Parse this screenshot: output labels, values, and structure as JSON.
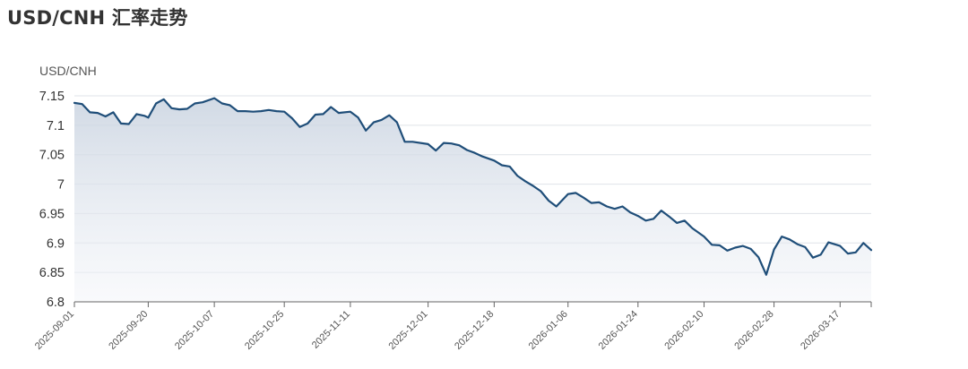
{
  "title": "USD/CNH 汇率走势",
  "chart_data": {
    "type": "area",
    "ylabel": "USD/CNH",
    "xlabel": "",
    "ylim": [
      6.8,
      7.15
    ],
    "yticks": [
      "6.8",
      "6.85",
      "6.9",
      "6.95",
      "7",
      "7.05",
      "7.1",
      "7.15"
    ],
    "xlim": [
      "2025-09-01",
      "2026-03-25"
    ],
    "xticks": [
      "2025-09-01",
      "2025-09-20",
      "2025-10-07",
      "2025-10-25",
      "2025-11-11",
      "2025-12-01",
      "2025-12-18",
      "2026-01-06",
      "2026-01-24",
      "2026-02-10",
      "2026-02-28",
      "2026-03-17"
    ],
    "grid": true,
    "line_color": "#1f4e79",
    "series": [
      {
        "x": [
          "2025-09-01",
          "2025-09-03",
          "2025-09-05",
          "2025-09-07",
          "2025-09-09",
          "2025-09-11",
          "2025-09-13",
          "2025-09-15",
          "2025-09-17",
          "2025-09-19",
          "2025-09-20",
          "2025-09-22",
          "2025-09-24",
          "2025-09-26",
          "2025-09-28",
          "2025-09-30",
          "2025-10-02",
          "2025-10-04",
          "2025-10-07",
          "2025-10-09",
          "2025-10-11",
          "2025-10-13",
          "2025-10-15",
          "2025-10-17",
          "2025-10-19",
          "2025-10-21",
          "2025-10-23",
          "2025-10-25",
          "2025-10-27",
          "2025-10-29",
          "2025-10-31",
          "2025-11-02",
          "2025-11-04",
          "2025-11-06",
          "2025-11-08",
          "2025-11-11",
          "2025-11-13",
          "2025-11-15",
          "2025-11-17",
          "2025-11-19",
          "2025-11-21",
          "2025-11-23",
          "2025-11-25",
          "2025-11-27",
          "2025-12-01",
          "2025-12-03",
          "2025-12-05",
          "2025-12-07",
          "2025-12-09",
          "2025-12-11",
          "2025-12-13",
          "2025-12-15",
          "2025-12-18",
          "2025-12-20",
          "2025-12-22",
          "2025-12-24",
          "2025-12-26",
          "2025-12-28",
          "2025-12-30",
          "2026-01-01",
          "2026-01-03",
          "2026-01-06",
          "2026-01-08",
          "2026-01-10",
          "2026-01-12",
          "2026-01-14",
          "2026-01-16",
          "2026-01-18",
          "2026-01-20",
          "2026-01-22",
          "2026-01-24",
          "2026-01-26",
          "2026-01-28",
          "2026-01-30",
          "2026-02-01",
          "2026-02-03",
          "2026-02-05",
          "2026-02-07",
          "2026-02-10",
          "2026-02-12",
          "2026-02-14",
          "2026-02-16",
          "2026-02-18",
          "2026-02-20",
          "2026-02-22",
          "2026-02-24",
          "2026-02-26",
          "2026-02-28",
          "2026-03-02",
          "2026-03-04",
          "2026-03-06",
          "2026-03-08",
          "2026-03-10",
          "2026-03-12",
          "2026-03-14",
          "2026-03-17",
          "2026-03-19",
          "2026-03-21",
          "2026-03-23",
          "2026-03-25"
        ],
        "values": [
          7.138,
          7.136,
          7.122,
          7.121,
          7.115,
          7.122,
          7.103,
          7.102,
          7.119,
          7.116,
          7.113,
          7.137,
          7.144,
          7.129,
          7.127,
          7.128,
          7.137,
          7.139,
          7.146,
          7.137,
          7.134,
          7.124,
          7.124,
          7.123,
          7.124,
          7.126,
          7.124,
          7.123,
          7.112,
          7.097,
          7.103,
          7.118,
          7.119,
          7.131,
          7.121,
          7.123,
          7.113,
          7.091,
          7.105,
          7.109,
          7.117,
          7.105,
          7.072,
          7.072,
          7.068,
          7.057,
          7.07,
          7.069,
          7.066,
          7.058,
          7.053,
          7.047,
          7.04,
          7.032,
          7.03,
          7.014,
          7.005,
          6.997,
          6.988,
          6.972,
          6.962,
          6.983,
          6.985,
          6.977,
          6.968,
          6.969,
          6.962,
          6.958,
          6.962,
          6.952,
          6.946,
          6.938,
          6.941,
          6.955,
          6.945,
          6.934,
          6.938,
          6.925,
          6.911,
          6.897,
          6.896,
          6.887,
          6.892,
          6.895,
          6.89,
          6.876,
          6.846,
          6.889,
          6.911,
          6.906,
          6.898,
          6.893,
          6.875,
          6.88,
          6.901,
          6.895,
          6.882,
          6.884,
          6.9,
          6.888
        ]
      }
    ]
  }
}
